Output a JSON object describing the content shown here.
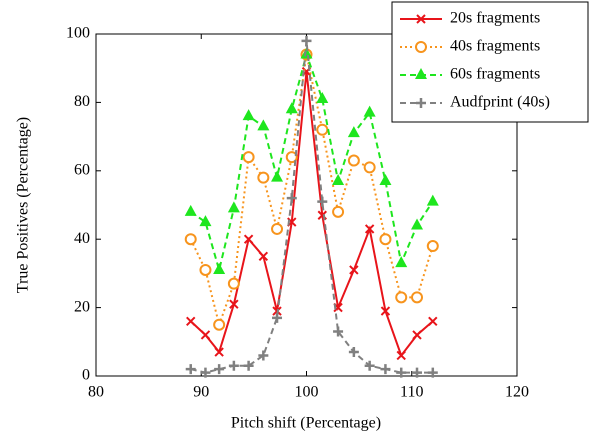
{
  "chart_data": {
    "type": "line",
    "xlabel": "Pitch shift (Percentage)",
    "ylabel": "True Positives (Percentage)",
    "x": [
      89,
      90.4,
      91.7,
      93.1,
      94.5,
      95.9,
      97.2,
      98.6,
      100,
      101.5,
      103,
      104.5,
      106,
      107.5,
      109,
      110.5,
      112
    ],
    "series": [
      {
        "name": "20s fragments",
        "color": "#e8141a",
        "marker": "x",
        "dash": "solid",
        "values": [
          16,
          12,
          7,
          21,
          40,
          35,
          19,
          45,
          89,
          47,
          20,
          31,
          43,
          19,
          6,
          12,
          16
        ]
      },
      {
        "name": "40s fragments",
        "color": "#f7941d",
        "marker": "circle",
        "dash": "dotted",
        "values": [
          40,
          31,
          15,
          27,
          64,
          58,
          43,
          64,
          94,
          72,
          48,
          63,
          61,
          40,
          23,
          23,
          38
        ]
      },
      {
        "name": "60s fragments",
        "color": "#1ee61e",
        "marker": "triangle",
        "dash": "dashed",
        "values": [
          48,
          45,
          31,
          49,
          76,
          73,
          58,
          78,
          94,
          81,
          57,
          71,
          77,
          57,
          33,
          44,
          51
        ]
      },
      {
        "name": "Audfprint (40s)",
        "color": "#808080",
        "marker": "plus",
        "dash": "dashed",
        "values": [
          2,
          1,
          2,
          3,
          3,
          6,
          17,
          52,
          98,
          51,
          13,
          7,
          3,
          2,
          1,
          1,
          1
        ]
      }
    ],
    "xlim": [
      80,
      120
    ],
    "xticks": [
      80,
      90,
      100,
      110,
      120
    ],
    "ylim": [
      0,
      100
    ],
    "yticks": [
      0,
      20,
      40,
      60,
      80,
      100
    ],
    "legend": "top-right"
  }
}
